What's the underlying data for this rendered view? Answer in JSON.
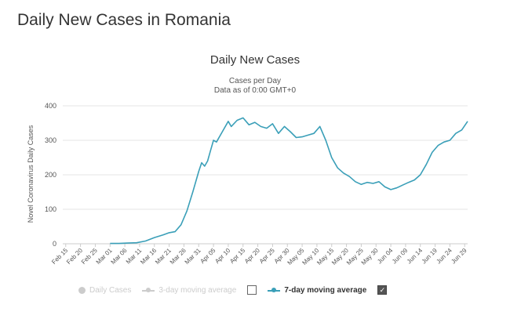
{
  "page": {
    "heading": "Daily New Cases in Romania"
  },
  "chart_data": {
    "type": "line",
    "title": "Daily New Cases",
    "subtitle_line1": "Cases per Day",
    "subtitle_line2": "Data as of 0:00 GMT+0",
    "xlabel": "",
    "ylabel": "Novel Coronavirus Daily Cases",
    "ylim": [
      0,
      400
    ],
    "yticks": [
      0,
      100,
      200,
      300,
      400
    ],
    "grid": true,
    "line_color": "#3a9fb8",
    "x_tick_labels": [
      "Feb 15",
      "Feb 20",
      "Feb 25",
      "Mar 01",
      "Mar 06",
      "Mar 11",
      "Mar 16",
      "Mar 21",
      "Mar 26",
      "Mar 31",
      "Apr 05",
      "Apr 10",
      "Apr 15",
      "Apr 20",
      "Apr 25",
      "Apr 30",
      "May 05",
      "May 10",
      "May 15",
      "May 20",
      "May 25",
      "May 30",
      "Jun 04",
      "Jun 09",
      "Jun 14",
      "Jun 19",
      "Jun 24",
      "Jun 29"
    ],
    "series": [
      {
        "name": "7-day moving average",
        "dates": [
          "Mar 01",
          "Mar 04",
          "Mar 07",
          "Mar 10",
          "Mar 13",
          "Mar 16",
          "Mar 19",
          "Mar 21",
          "Mar 23",
          "Mar 25",
          "Mar 27",
          "Mar 29",
          "Mar 31",
          "Apr 01",
          "Apr 02",
          "Apr 03",
          "Apr 04",
          "Apr 05",
          "Apr 06",
          "Apr 08",
          "Apr 10",
          "Apr 11",
          "Apr 13",
          "Apr 15",
          "Apr 17",
          "Apr 19",
          "Apr 21",
          "Apr 23",
          "Apr 25",
          "Apr 27",
          "Apr 29",
          "May 01",
          "May 03",
          "May 05",
          "May 07",
          "May 09",
          "May 11",
          "May 13",
          "May 15",
          "May 17",
          "May 19",
          "May 21",
          "May 23",
          "May 25",
          "May 27",
          "May 29",
          "May 31",
          "Jun 02",
          "Jun 04",
          "Jun 06",
          "Jun 08",
          "Jun 10",
          "Jun 12",
          "Jun 14",
          "Jun 16",
          "Jun 18",
          "Jun 20",
          "Jun 22",
          "Jun 24",
          "Jun 26",
          "Jun 28",
          "Jun 30"
        ],
        "values": [
          1,
          1,
          2,
          3,
          8,
          18,
          26,
          32,
          35,
          55,
          95,
          150,
          210,
          235,
          225,
          240,
          270,
          300,
          295,
          325,
          355,
          340,
          358,
          365,
          345,
          352,
          340,
          335,
          348,
          320,
          340,
          325,
          308,
          310,
          315,
          320,
          340,
          300,
          250,
          220,
          205,
          195,
          180,
          172,
          178,
          175,
          180,
          165,
          157,
          162,
          170,
          178,
          185,
          200,
          230,
          265,
          285,
          295,
          300,
          320,
          330,
          355
        ]
      }
    ],
    "legend": [
      {
        "label": "Daily Cases",
        "enabled": false
      },
      {
        "label": "3-day moving average",
        "enabled": false
      },
      {
        "label": "7-day moving average",
        "enabled": true
      }
    ],
    "check_mark": "✓"
  }
}
